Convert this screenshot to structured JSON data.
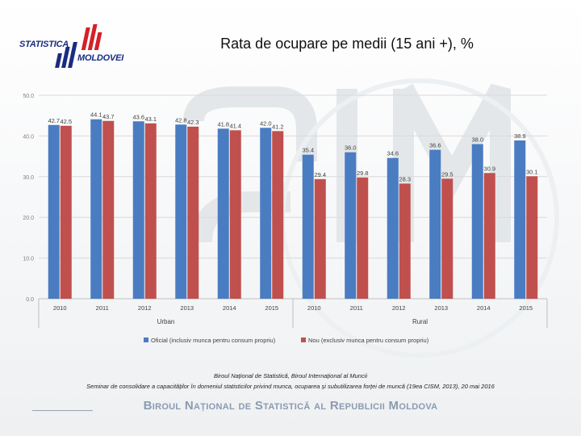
{
  "page": {
    "title": "Rata de ocupare pe medii (15 ani +), %",
    "logo_line1": "STATISTICA",
    "logo_line2": "MOLDOVEI",
    "source_line": "Biroul Național de Statistică, Biroul Internațional al Muncii",
    "seminar_line": "Seminar de consolidare a capacităților în domeniul statisticilor privind munca, ocuparea și subutilizarea forței de muncă (19ea CISM, 2013), 20 mai 2016",
    "brand_footer": "Biroul Național de Statistică al Republicii Moldova"
  },
  "colors": {
    "series1": "#4a7cc2",
    "series2": "#c0504d",
    "axis_text": "#7f7f7f",
    "gridline": "#d9d9d9",
    "logo_blue": "#1a2c80",
    "logo_red": "#d42027"
  },
  "chart_data": {
    "type": "bar",
    "title": "",
    "xlabel": "",
    "ylabel": "",
    "ylim": [
      0,
      50
    ],
    "yticks": [
      "0.0",
      "10.0",
      "20.0",
      "30.0",
      "40.0",
      "50.0"
    ],
    "groups": [
      {
        "name": "Urban",
        "categories": [
          "2010",
          "2011",
          "2012",
          "2013",
          "2014",
          "2015"
        ]
      },
      {
        "name": "Rural",
        "categories": [
          "2010",
          "2011",
          "2012",
          "2013",
          "2014",
          "2015"
        ]
      }
    ],
    "categories": [
      "2010",
      "2011",
      "2012",
      "2013",
      "2014",
      "2015",
      "2010",
      "2011",
      "2012",
      "2013",
      "2014",
      "2015"
    ],
    "series": [
      {
        "name": "Oficial (inclusiv munca pentru consum propriu)",
        "values": [
          42.7,
          44.1,
          43.6,
          42.8,
          41.8,
          42.0,
          35.4,
          36.0,
          34.6,
          36.6,
          38.0,
          38.9
        ],
        "labels": [
          "42.7",
          "44.1",
          "43.6",
          "42.8",
          "41.8",
          "42.0",
          "35.4",
          "36.0",
          "34.6",
          "36.6",
          "38.0",
          "38.9"
        ]
      },
      {
        "name": "Nou (exclusiv munca pentru consum propriu)",
        "values": [
          42.5,
          43.7,
          43.1,
          42.3,
          41.4,
          41.2,
          29.4,
          29.8,
          28.3,
          29.5,
          30.9,
          30.1
        ],
        "labels": [
          "42.5",
          "43.7",
          "43.1",
          "42.3",
          "41.4",
          "41.2",
          "29.4",
          "29.8",
          "28.3",
          "29.5",
          "30.9",
          "30.1"
        ]
      }
    ],
    "legend_position": "bottom"
  }
}
